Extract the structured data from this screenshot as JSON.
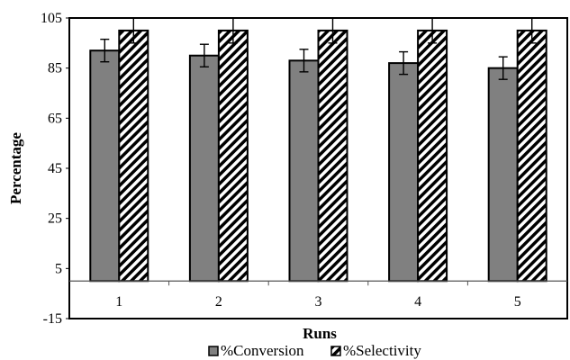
{
  "chart_data": {
    "type": "bar",
    "title": "",
    "xlabel": "Runs",
    "ylabel": "Percentage",
    "ylim": [
      -15,
      105
    ],
    "y_ticks": [
      -15,
      5,
      25,
      45,
      65,
      85,
      105
    ],
    "categories": [
      "1",
      "2",
      "3",
      "4",
      "5"
    ],
    "grid": false,
    "legend_position": "bottom",
    "series": [
      {
        "name": "%Conversion",
        "values": [
          92,
          90,
          88,
          87,
          85
        ],
        "error": [
          4.5,
          4.5,
          4.5,
          4.5,
          4.5
        ],
        "fill": "#808080",
        "pattern": "solid"
      },
      {
        "name": "%Selectivity",
        "values": [
          100,
          100,
          100,
          100,
          100
        ],
        "error": [
          5,
          5,
          5,
          5,
          5
        ],
        "fill": "#ffffff",
        "pattern": "diagonal-hatch"
      }
    ]
  }
}
